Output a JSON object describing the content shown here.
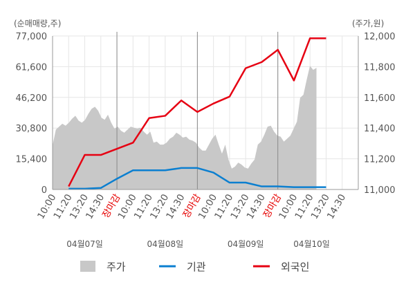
{
  "chart_data": {
    "type": "line",
    "left_axis_unit": "(순매매량,주)",
    "right_axis_unit": "(주가,원)",
    "left_ticks": [
      "77,000",
      "61,600",
      "46,200",
      "30,800",
      "15,400",
      "0"
    ],
    "left_tick_values": [
      77000,
      61600,
      46200,
      30800,
      15400,
      0
    ],
    "right_ticks": [
      "12,000",
      "11,800",
      "11,600",
      "11,400",
      "11,200",
      "11,000"
    ],
    "right_tick_values": [
      12000,
      11800,
      11600,
      11400,
      11200,
      11000
    ],
    "left_ylim": [
      0,
      77000
    ],
    "right_ylim": [
      11000,
      12000
    ],
    "x_labels": [
      "10:00",
      "11:20",
      "13:20",
      "14:30",
      "장마감",
      "10:00",
      "11:20",
      "13:20",
      "14:30",
      "장마감",
      "10:00",
      "11:20",
      "13:20",
      "14:30",
      "장마감",
      "10:00",
      "11:20",
      "13:20",
      "14:30"
    ],
    "x_label_close": [
      false,
      false,
      false,
      false,
      true,
      false,
      false,
      false,
      false,
      true,
      false,
      false,
      false,
      false,
      true,
      false,
      false,
      false,
      false
    ],
    "days": [
      "04월07일",
      "04월08일",
      "04월09일",
      "04월10일"
    ],
    "legend": {
      "price": "주가",
      "institution": "기관",
      "foreign": "외국인"
    },
    "colors": {
      "price_area": "#c8c8c8",
      "institution": "#0b7fd0",
      "foreign": "#e60012",
      "grid": "#e6e6e6",
      "day_divider": "#888888",
      "axis": "#999999"
    },
    "series": [
      {
        "name": "기관",
        "axis": "right",
        "x": [
          1,
          2,
          3,
          4,
          5,
          6,
          7,
          8,
          9,
          10,
          11,
          12,
          13,
          14,
          15,
          16,
          17
        ],
        "values": [
          11005,
          11005,
          11010,
          11070,
          11125,
          11125,
          11125,
          11140,
          11140,
          11110,
          11045,
          11045,
          11020,
          11020,
          11015,
          11015,
          11015
        ]
      },
      {
        "name": "외국인",
        "axis": "right",
        "x": [
          1,
          2,
          3,
          4,
          5,
          6,
          7,
          8,
          9,
          10,
          11,
          12,
          13,
          14,
          15,
          16,
          17
        ],
        "values": [
          11020,
          11225,
          11225,
          11265,
          11305,
          11465,
          11480,
          11580,
          11505,
          11560,
          11605,
          11790,
          11830,
          11910,
          11710,
          11985,
          11985
        ]
      }
    ],
    "price_series": {
      "name": "주가",
      "axis": "left",
      "x_start": 0,
      "x_end": 16.4,
      "values": [
        22000,
        30000,
        31500,
        33000,
        32000,
        33500,
        35500,
        37000,
        34500,
        33500,
        35000,
        38000,
        40500,
        41500,
        39500,
        36000,
        35000,
        37500,
        33500,
        30500,
        31500,
        29500,
        28500,
        30000,
        31500,
        31000,
        30500,
        31000,
        29000,
        27500,
        29000,
        23500,
        24000,
        22500,
        22500,
        23500,
        25500,
        26500,
        28500,
        27500,
        26000,
        26500,
        25000,
        24500,
        23500,
        21000,
        19500,
        19500,
        22500,
        25500,
        27500,
        22500,
        18000,
        22500,
        15000,
        10500,
        11500,
        13500,
        12500,
        11000,
        10500,
        13000,
        15000,
        22500,
        24000,
        27500,
        31500,
        32000,
        29000,
        27000,
        26500,
        24000,
        25500,
        27000,
        30500,
        34000,
        46000,
        47500,
        55000,
        62000,
        60000,
        61000
      ]
    }
  }
}
